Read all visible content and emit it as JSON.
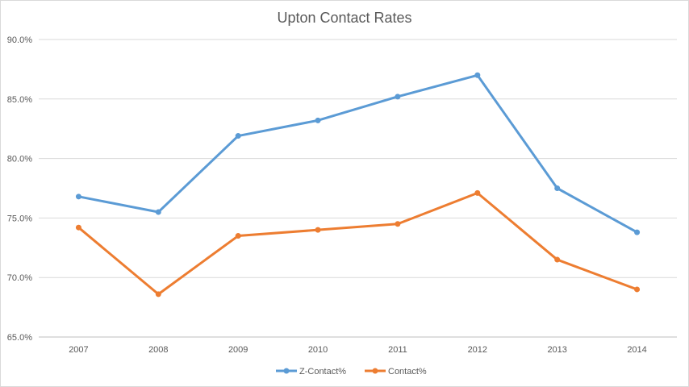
{
  "chart_data": {
    "type": "line",
    "title": "Upton Contact Rates",
    "xlabel": "",
    "ylabel": "",
    "categories": [
      "2007",
      "2008",
      "2009",
      "2010",
      "2011",
      "2012",
      "2013",
      "2014"
    ],
    "ylim": [
      65.0,
      90.0
    ],
    "yticks": [
      "65.0%",
      "70.0%",
      "75.0%",
      "80.0%",
      "85.0%",
      "90.0%"
    ],
    "grid": true,
    "legend_position": "bottom",
    "series": [
      {
        "name": "Z-Contact%",
        "color": "#5b9bd5",
        "values": [
          76.8,
          75.5,
          81.9,
          83.2,
          85.2,
          87.0,
          77.5,
          73.8
        ]
      },
      {
        "name": "Contact%",
        "color": "#ed7d31",
        "values": [
          74.2,
          68.6,
          73.5,
          74.0,
          74.5,
          77.1,
          71.5,
          69.0
        ]
      }
    ]
  }
}
